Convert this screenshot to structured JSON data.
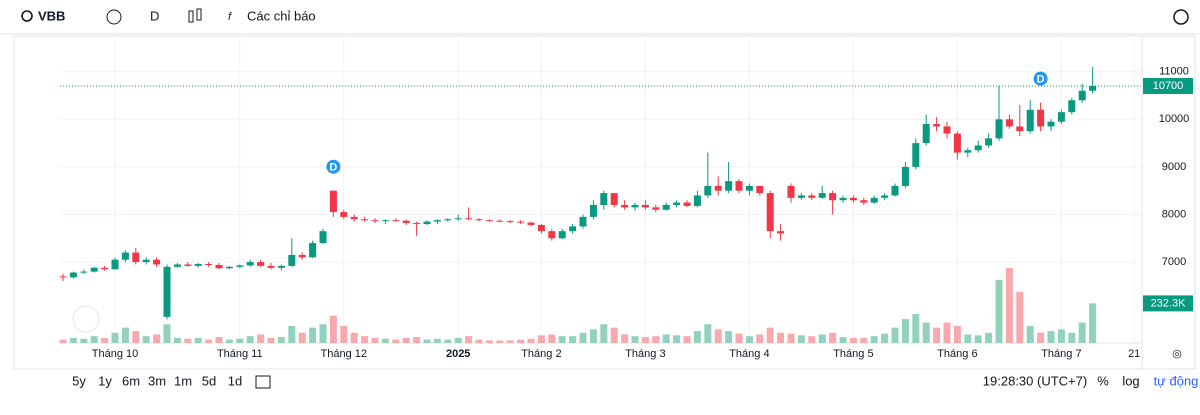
{
  "toolbar": {
    "symbol": "VBB",
    "interval": "D",
    "indicators": "Các chỉ báo"
  },
  "footer": {
    "ranges": [
      "5y",
      "1y",
      "6m",
      "3m",
      "1m",
      "5d",
      "1d"
    ],
    "time": "19:28:30 (UTC+7)",
    "percent": "%",
    "log": "log",
    "auto": "tự động"
  },
  "chart_data": {
    "type": "candlestick",
    "categories": [
      null,
      null,
      null,
      null,
      null,
      "Tháng 10",
      null,
      null,
      null,
      null,
      null,
      null,
      null,
      null,
      null,
      null,
      null,
      "Tháng 11",
      null,
      null,
      null,
      null,
      null,
      null,
      null,
      null,
      null,
      "Tháng 12",
      null,
      null,
      null,
      null,
      null,
      null,
      null,
      null,
      null,
      null,
      "2025",
      null,
      null,
      null,
      null,
      null,
      null,
      null,
      "Tháng 2",
      null,
      null,
      null,
      null,
      null,
      null,
      null,
      null,
      null,
      "Tháng 3",
      null,
      null,
      null,
      null,
      null,
      null,
      null,
      null,
      null,
      "Tháng 4",
      null,
      null,
      null,
      null,
      null,
      null,
      null,
      null,
      null,
      "Tháng 5",
      null,
      null,
      null,
      null,
      null,
      null,
      null,
      null,
      null,
      "Tháng 6",
      null,
      null,
      null,
      null,
      null,
      null,
      null,
      null,
      null,
      "Tháng 7",
      null,
      null,
      null,
      null,
      null,
      null,
      "21"
    ],
    "open": [
      6700,
      6680,
      6780,
      6800,
      6880,
      6850,
      7050,
      7200,
      7000,
      7050,
      5850,
      6900,
      6950,
      6920,
      6960,
      6940,
      6870,
      6900,
      6930,
      7000,
      6920,
      6880,
      6920,
      7150,
      7100,
      7400,
      8500,
      8050,
      7950,
      7900,
      7880,
      7860,
      7880,
      7870,
      7820,
      7800,
      7850,
      7880,
      7900,
      7920,
      7900,
      7880,
      7870,
      7860,
      7850,
      7830,
      7780,
      7650,
      7500,
      7650,
      7750,
      7950,
      8200,
      8450,
      8200,
      8150,
      8200,
      8150,
      8100,
      8200,
      8250,
      8180,
      8400,
      8600,
      8500,
      8700,
      8500,
      8600,
      8450,
      7650,
      8600,
      8350,
      8400,
      8350,
      8450,
      8300,
      8350,
      8300,
      8250,
      8350,
      8400,
      8600,
      9000,
      9500,
      9900,
      9850,
      9700,
      9300,
      9350,
      9450,
      9600,
      10000,
      9850,
      9750,
      10200,
      9850,
      9950,
      10150,
      10400,
      10600,
      null,
      null,
      null,
      null
    ],
    "high": [
      6750,
      6800,
      6850,
      6900,
      6920,
      7100,
      7250,
      7300,
      7100,
      7100,
      6950,
      6980,
      7000,
      6980,
      7000,
      6980,
      6920,
      6950,
      7050,
      7050,
      6980,
      6950,
      7500,
      7200,
      7450,
      7700,
      8500,
      8100,
      8000,
      7950,
      7920,
      7900,
      7920,
      7900,
      7850,
      7880,
      7900,
      7920,
      8000,
      8150,
      7920,
      7900,
      7900,
      7880,
      7880,
      7850,
      7800,
      7700,
      7700,
      7800,
      8000,
      8300,
      8500,
      8450,
      8300,
      8250,
      8300,
      8200,
      8250,
      8300,
      8300,
      8500,
      9300,
      8800,
      9100,
      8750,
      8650,
      8600,
      8500,
      7800,
      8650,
      8450,
      8450,
      8600,
      8500,
      8400,
      8400,
      8350,
      8400,
      8450,
      8650,
      9100,
      9600,
      10100,
      10050,
      9950,
      9750,
      9400,
      9550,
      9700,
      10700,
      10100,
      10300,
      10400,
      10350,
      10000,
      10200,
      10450,
      10750,
      11100,
      null,
      null,
      null,
      null
    ],
    "low": [
      6600,
      6650,
      6750,
      6780,
      6820,
      6840,
      7000,
      6950,
      6950,
      6900,
      5800,
      6880,
      6900,
      6880,
      6900,
      6850,
      6850,
      6870,
      6900,
      6900,
      6850,
      6820,
      6900,
      7050,
      7080,
      7380,
      7950,
      7900,
      7850,
      7850,
      7820,
      7800,
      7850,
      7780,
      7550,
      7780,
      7800,
      7850,
      7870,
      7880,
      7860,
      7850,
      7840,
      7820,
      7800,
      7750,
      7600,
      7450,
      7480,
      7600,
      7700,
      7900,
      8100,
      8150,
      8100,
      8080,
      8100,
      8050,
      8080,
      8150,
      8150,
      8150,
      8350,
      8400,
      8450,
      8450,
      8400,
      8400,
      7500,
      7450,
      8250,
      8300,
      8300,
      8330,
      8000,
      8250,
      8250,
      8200,
      8220,
      8300,
      8380,
      8550,
      8950,
      9450,
      9750,
      9600,
      9150,
      9200,
      9300,
      9400,
      9550,
      9800,
      9650,
      9700,
      9750,
      9750,
      9900,
      10100,
      10350,
      10550,
      null,
      null,
      null,
      null
    ],
    "close": [
      6680,
      6780,
      6800,
      6880,
      6850,
      7050,
      7200,
      7000,
      7050,
      6950,
      6900,
      6950,
      6920,
      6960,
      6940,
      6870,
      6900,
      6930,
      7000,
      6920,
      6880,
      6920,
      7150,
      7100,
      7400,
      7650,
      8050,
      7950,
      7900,
      7880,
      7860,
      7880,
      7870,
      7820,
      7800,
      7850,
      7880,
      7900,
      7920,
      7900,
      7880,
      7870,
      7860,
      7850,
      7830,
      7780,
      7650,
      7500,
      7650,
      7750,
      7950,
      8200,
      8450,
      8200,
      8150,
      8200,
      8150,
      8100,
      8200,
      8250,
      8180,
      8400,
      8600,
      8500,
      8700,
      8500,
      8600,
      8450,
      7650,
      7600,
      8350,
      8400,
      8350,
      8450,
      8300,
      8350,
      8300,
      8250,
      8350,
      8400,
      8600,
      9000,
      9500,
      9900,
      9850,
      9700,
      9300,
      9350,
      9450,
      9600,
      10000,
      9850,
      9750,
      10200,
      9850,
      9950,
      10150,
      10400,
      10600,
      10700,
      null,
      null,
      null,
      null
    ],
    "volume": [
      20000,
      30000,
      25000,
      40000,
      30000,
      60000,
      90000,
      70000,
      40000,
      50000,
      110000,
      30000,
      25000,
      30000,
      20000,
      35000,
      20000,
      25000,
      40000,
      50000,
      30000,
      35000,
      100000,
      60000,
      90000,
      110000,
      160000,
      100000,
      60000,
      40000,
      30000,
      25000,
      20000,
      30000,
      35000,
      20000,
      25000,
      20000,
      30000,
      40000,
      20000,
      15000,
      15000,
      15000,
      20000,
      25000,
      45000,
      50000,
      40000,
      40000,
      60000,
      80000,
      110000,
      90000,
      50000,
      40000,
      35000,
      40000,
      50000,
      45000,
      40000,
      70000,
      110000,
      80000,
      70000,
      55000,
      40000,
      50000,
      90000,
      60000,
      55000,
      45000,
      40000,
      50000,
      60000,
      35000,
      30000,
      30000,
      40000,
      55000,
      90000,
      140000,
      170000,
      120000,
      90000,
      120000,
      100000,
      50000,
      45000,
      60000,
      370000,
      440000,
      300000,
      100000,
      60000,
      70000,
      80000,
      60000,
      120000,
      232300,
      null,
      null,
      null,
      null
    ],
    "last_volume_label": "232.3K",
    "ylim": [
      5300,
      11750
    ],
    "yticks": [
      7000,
      8000,
      9000,
      10000,
      11000
    ],
    "volume_ylim": [
      0,
      1800000
    ],
    "dividend_markers": {
      "label": "D",
      "at": [
        26,
        94
      ]
    },
    "up_color": "#089981",
    "down_color": "#f23645",
    "volume_up_color": "#92d2bd",
    "volume_down_color": "#f7a9ae",
    "marker_color": "#2196f3"
  }
}
